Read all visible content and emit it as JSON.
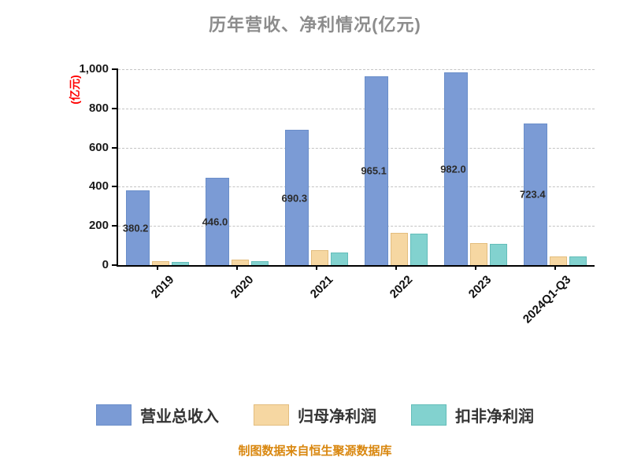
{
  "title": "历年营收、净利情况(亿元)",
  "footer": "制图数据来自恒生聚源数据库",
  "y_axis": {
    "unit_label": "(亿元)",
    "tick_labels": [
      "0",
      "200",
      "400",
      "600",
      "800",
      "1,000"
    ]
  },
  "colors": {
    "title": "#8c8c8c",
    "unit_label": "#ff0000",
    "footer": "#d9870f",
    "gridline": "#c4c4c4",
    "axis": "#000000"
  },
  "chart_data": {
    "type": "bar",
    "title": "历年营收、净利情况(亿元)",
    "categories": [
      "2019",
      "2020",
      "2021",
      "2022",
      "2023",
      "2024Q1-Q3"
    ],
    "series": [
      {
        "key": "revenue",
        "name": "营业总收入",
        "color": "#7b9bd5",
        "border": "#6a8ec9",
        "values": [
          380.2,
          446.0,
          690.3,
          965.1,
          982.0,
          723.4
        ],
        "labels": [
          "380.2",
          "446.0",
          "690.3",
          "965.1",
          "982.0",
          "723.4"
        ]
      },
      {
        "key": "net-profit",
        "name": "归母净利润",
        "color": "#f6d7a2",
        "border": "#e3bd7e",
        "values": [
          20,
          27,
          76,
          163,
          113,
          46
        ]
      },
      {
        "key": "non-gaap-profit",
        "name": "扣非净利润",
        "color": "#82d2cf",
        "border": "#64bdb9",
        "values": [
          16,
          19,
          64,
          160,
          107,
          43
        ]
      }
    ],
    "ylim": [
      0,
      1000
    ],
    "y_ticks": [
      0,
      200,
      400,
      600,
      800,
      1000
    ],
    "grid": "horizontal-dashed",
    "legend_position": "bottom",
    "x_label_rotation": -45
  }
}
